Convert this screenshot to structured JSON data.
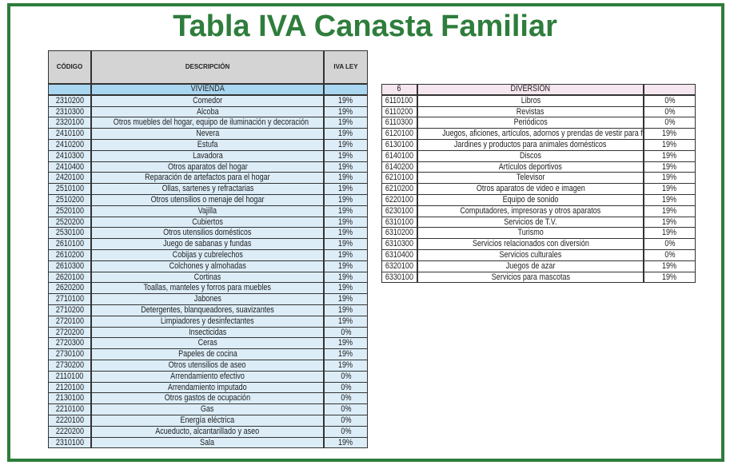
{
  "title": "Tabla IVA Canasta Familiar",
  "left_table": {
    "headers": [
      "CÓDIGO",
      "DESCRIPCIÓN",
      "TARIFA IVA LEY VIGENTE"
    ],
    "section": "VIVIENDA",
    "rows": [
      [
        "2310200",
        "Comedor",
        "19%"
      ],
      [
        "2310300",
        "Alcoba",
        "19%"
      ],
      [
        "2320100",
        "Otros muebles del hogar, equipo de iluminación y decoración",
        "19%"
      ],
      [
        "2410100",
        "Nevera",
        "19%"
      ],
      [
        "2410200",
        "Estufa",
        "19%"
      ],
      [
        "2410300",
        "Lavadora",
        "19%"
      ],
      [
        "2410400",
        "Otros aparatos del hogar",
        "19%"
      ],
      [
        "2420100",
        "Reparación de artefactos para el hogar",
        "19%"
      ],
      [
        "2510100",
        "Ollas, sartenes y refractarias",
        "19%"
      ],
      [
        "2510200",
        "Otros utensilios o menaje del hogar",
        "19%"
      ],
      [
        "2520100",
        "Vajilla",
        "19%"
      ],
      [
        "2520200",
        "Cubiertos",
        "19%"
      ],
      [
        "2530100",
        "Otros utensilios domésticos",
        "19%"
      ],
      [
        "2610100",
        "Juego de sabanas y fundas",
        "19%"
      ],
      [
        "2610200",
        "Cobijas y cubrelechos",
        "19%"
      ],
      [
        "2610300",
        "Colchones y almohadas",
        "19%"
      ],
      [
        "2620100",
        "Cortinas",
        "19%"
      ],
      [
        "2620200",
        "Toallas, manteles y forros para muebles",
        "19%"
      ],
      [
        "2710100",
        "Jabones",
        "19%"
      ],
      [
        "2710200",
        "Detergentes, blanqueadores, suavizantes",
        "19%"
      ],
      [
        "2720100",
        "Limpiadores y desinfectantes",
        "19%"
      ],
      [
        "2720200",
        "Insecticidas",
        "0%"
      ],
      [
        "2720300",
        "Ceras",
        "19%"
      ],
      [
        "2730100",
        "Papeles de cocina",
        "19%"
      ],
      [
        "2730200",
        "Otros utensilios de aseo",
        "19%"
      ],
      [
        "2110100",
        "Arrendamiento efectivo",
        "0%"
      ],
      [
        "2120100",
        "Arrendamiento imputado",
        "0%"
      ],
      [
        "2130100",
        "Otros gastos de ocupación",
        "0%"
      ],
      [
        "2210100",
        "Gas",
        "0%"
      ],
      [
        "2220100",
        "Energía eléctrica",
        "0%"
      ],
      [
        "2220200",
        "Acueducto, alcantarillado y aseo",
        "0%"
      ],
      [
        "2310100",
        "Sala",
        "19%"
      ]
    ]
  },
  "right_table": {
    "section_code": "6",
    "section": "DIVERSIÓN",
    "rows": [
      [
        "6110100",
        "Libros",
        "0%"
      ],
      [
        "6110200",
        "Revistas",
        "0%"
      ],
      [
        "6110300",
        "Periódicos",
        "0%"
      ],
      [
        "6120100",
        "Juegos, aficiones, artículos, adornos y prendas de vestir para fiestas",
        "19%"
      ],
      [
        "6130100",
        "Jardines y productos para animales domésticos",
        "19%"
      ],
      [
        "6140100",
        "Discos",
        "19%"
      ],
      [
        "6140200",
        "Artículos deportivos",
        "19%"
      ],
      [
        "6210100",
        "Televisor",
        "19%"
      ],
      [
        "6210200",
        "Otros aparatos de video e imagen",
        "19%"
      ],
      [
        "6220100",
        "Equipo de sonido",
        "19%"
      ],
      [
        "6230100",
        "Computadores, impresoras y otros aparatos",
        "19%"
      ],
      [
        "6310100",
        "Servicios de T.V.",
        "19%"
      ],
      [
        "6310200",
        "Turismo",
        "19%"
      ],
      [
        "6310300",
        "Servicios relacionados con diversión",
        "0%"
      ],
      [
        "6310400",
        "Servicios culturales",
        "0%"
      ],
      [
        "6320100",
        "Juegos de azar",
        "19%"
      ],
      [
        "6330100",
        "Servicios para mascotas",
        "19%"
      ]
    ]
  }
}
